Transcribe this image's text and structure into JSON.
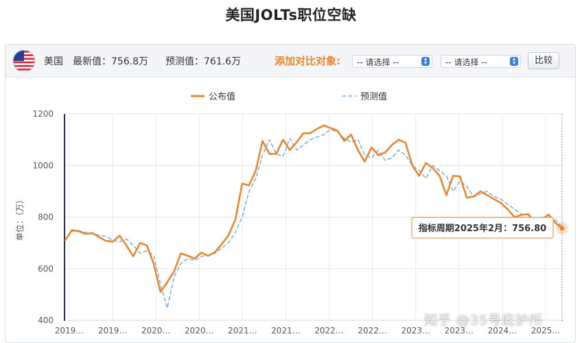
{
  "page_title": "美国JOLTs职位空缺",
  "toolbar": {
    "flag_icon": "us-flag-icon",
    "country": "美国",
    "latest_label": "最新值：",
    "latest_value": "756.8万",
    "forecast_label": "预测值：",
    "forecast_value": "761.6万",
    "compare_label": "添加对比对象:",
    "select_1": "-- 请选择 --",
    "select_2": "-- 请选择 --",
    "compare_button": "比较"
  },
  "tooltip": {
    "text": "指标周期2025年2月：756.80"
  },
  "watermark": "知乎 @35号庇护所",
  "colors": {
    "actual": "#e8862e",
    "forecast": "#6fa6de",
    "compare_label": "#e8872f"
  },
  "chart_data": {
    "type": "line",
    "ylabel": "单位：（万）",
    "ylim": [
      400,
      1200
    ],
    "yticks": [
      400,
      600,
      800,
      1000,
      1200
    ],
    "xticks": [
      "2019…",
      "2019…",
      "2020…",
      "2020…",
      "2021…",
      "2021…",
      "2022…",
      "2022…",
      "2023…",
      "2023…",
      "2024…",
      "2025…"
    ],
    "legend_position": "top",
    "grid": true,
    "x_start": "2019-01",
    "x": [
      "2019-01",
      "2019-02",
      "2019-03",
      "2019-04",
      "2019-05",
      "2019-06",
      "2019-07",
      "2019-08",
      "2019-09",
      "2019-10",
      "2019-11",
      "2019-12",
      "2020-01",
      "2020-02",
      "2020-03",
      "2020-04",
      "2020-05",
      "2020-06",
      "2020-07",
      "2020-08",
      "2020-09",
      "2020-10",
      "2020-11",
      "2020-12",
      "2021-01",
      "2021-02",
      "2021-03",
      "2021-04",
      "2021-05",
      "2021-06",
      "2021-07",
      "2021-08",
      "2021-09",
      "2021-10",
      "2021-11",
      "2021-12",
      "2022-01",
      "2022-02",
      "2022-03",
      "2022-04",
      "2022-05",
      "2022-06",
      "2022-07",
      "2022-08",
      "2022-09",
      "2022-10",
      "2022-11",
      "2022-12",
      "2023-01",
      "2023-02",
      "2023-03",
      "2023-04",
      "2023-05",
      "2023-06",
      "2023-07",
      "2023-08",
      "2023-09",
      "2023-10",
      "2023-11",
      "2023-12",
      "2024-01",
      "2024-02",
      "2024-03",
      "2024-04",
      "2024-05",
      "2024-06",
      "2024-07",
      "2024-08",
      "2024-09",
      "2024-10",
      "2024-11",
      "2024-12",
      "2025-01",
      "2025-02"
    ],
    "series": [
      {
        "name": "公布值",
        "values": [
          710,
          750,
          745,
          735,
          738,
          722,
          708,
          705,
          728,
          690,
          648,
          700,
          690,
          620,
          510,
          548,
          590,
          660,
          650,
          640,
          662,
          650,
          664,
          695,
          730,
          790,
          930,
          923,
          980,
          1095,
          1045,
          1045,
          1100,
          1060,
          1090,
          1125,
          1125,
          1142,
          1155,
          1145,
          1135,
          1095,
          1120,
          1060,
          1015,
          1070,
          1040,
          1050,
          1080,
          1100,
          1088,
          1000,
          960,
          1010,
          990,
          960,
          885,
          960,
          958,
          875,
          880,
          900,
          885,
          870,
          855,
          830,
          800,
          808,
          812,
          780,
          790,
          810,
          778,
          756.8
        ]
      },
      {
        "name": "预测值",
        "values": [
          null,
          745,
          748,
          740,
          735,
          730,
          725,
          710,
          705,
          715,
          690,
          660,
          670,
          652,
          540,
          448,
          570,
          620,
          640,
          632,
          648,
          652,
          660,
          680,
          700,
          740,
          800,
          900,
          950,
          1040,
          1100,
          1045,
          1035,
          1105,
          1060,
          1080,
          1100,
          1110,
          1120,
          1140,
          1130,
          1105,
          1090,
          1100,
          1040,
          1030,
          1060,
          1020,
          1030,
          1060,
          1040,
          1000,
          980,
          950,
          1000,
          980,
          960,
          900,
          940,
          920,
          878,
          890,
          900,
          880,
          870,
          850,
          830,
          812,
          808,
          790,
          800,
          798,
          790,
          761.6
        ]
      }
    ]
  }
}
